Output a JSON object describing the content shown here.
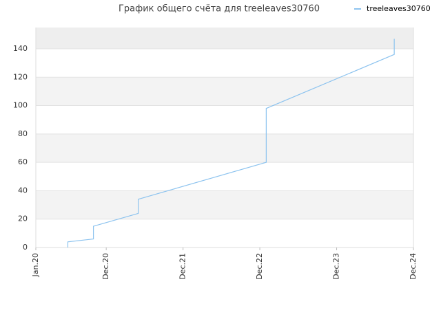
{
  "chart_data": {
    "type": "line",
    "title": "График общего счёта для treeleaves30760",
    "x": [
      "2020-06",
      "2020-06",
      "2020-10",
      "2020-10",
      "2021-05",
      "2021-05",
      "2023-01",
      "2023-01",
      "2024-09",
      "2024-09"
    ],
    "series": [
      {
        "name": "treeleaves30760",
        "color": "#8cc3ef",
        "values": [
          0,
          4,
          6,
          15,
          24,
          34,
          60,
          98,
          136,
          147
        ]
      }
    ],
    "xlim": [
      "2020-01",
      "2024-12"
    ],
    "xticks": [
      {
        "value": "2020-01",
        "label": "Jan.20"
      },
      {
        "value": "2020-12",
        "label": "Dec.20"
      },
      {
        "value": "2021-12",
        "label": "Dec.21"
      },
      {
        "value": "2022-12",
        "label": "Dec.22"
      },
      {
        "value": "2023-12",
        "label": "Dec.23"
      },
      {
        "value": "2024-12",
        "label": "Dec.24"
      }
    ],
    "ylim": [
      0,
      155
    ],
    "yticks": [
      0,
      20,
      40,
      60,
      80,
      100,
      120,
      140
    ],
    "grid": true,
    "legend": "top-right"
  }
}
